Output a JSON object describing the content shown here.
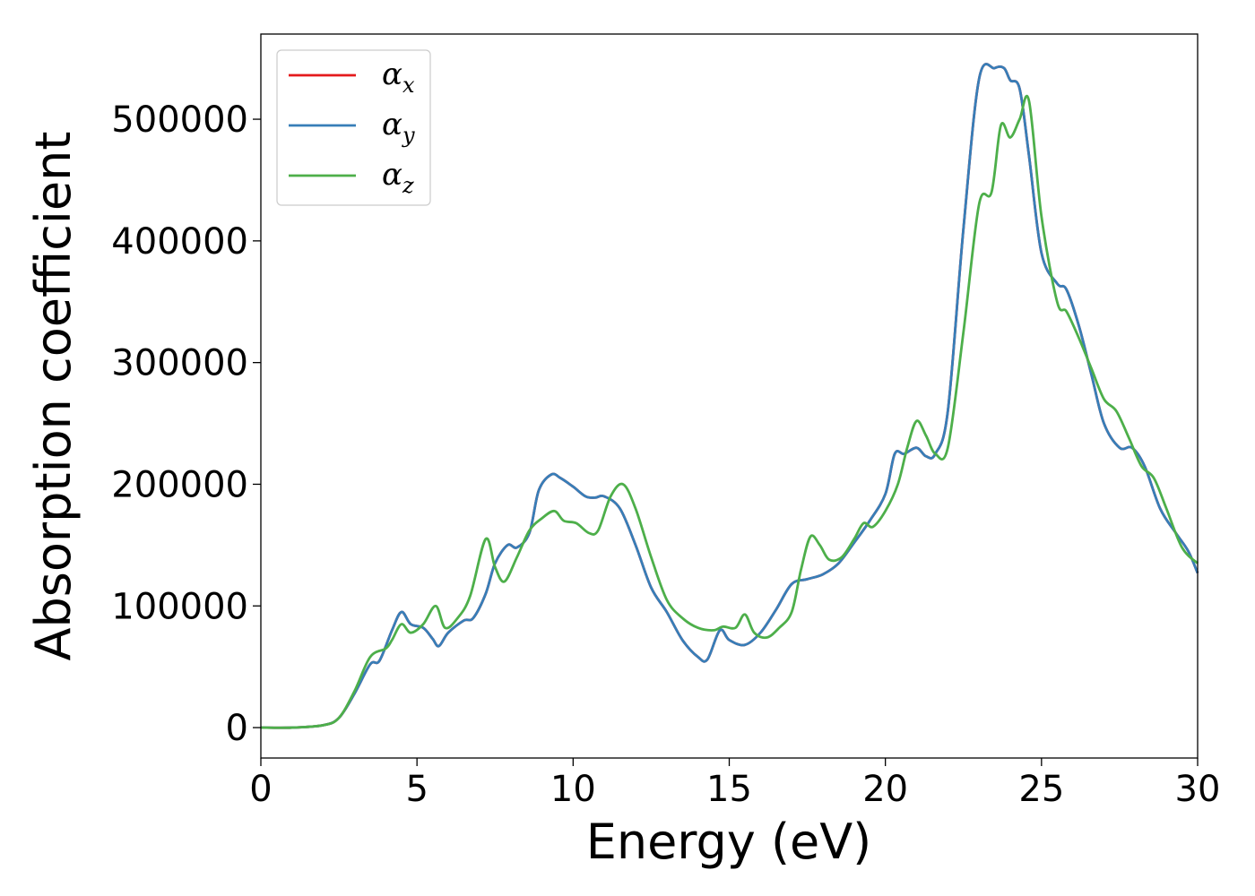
{
  "chart_data": {
    "type": "line",
    "xlabel": "Energy (eV)",
    "ylabel": "Absorption coefficient",
    "xlim": [
      0,
      30
    ],
    "ylim": [
      -25000,
      570000
    ],
    "xticks": [
      0,
      5,
      10,
      15,
      20,
      25,
      30
    ],
    "yticks": [
      0,
      100000,
      200000,
      300000,
      400000,
      500000
    ],
    "grid": false,
    "legend_position": "top-left",
    "series": [
      {
        "name": "α",
        "subscript": "x",
        "color": "#e41a1c",
        "x": [
          0,
          1,
          2,
          2.5,
          3,
          3.5,
          3.8,
          4.2,
          4.5,
          4.8,
          5.2,
          5.5,
          5.7,
          6,
          6.5,
          6.8,
          7.2,
          7.5,
          7.9,
          8.2,
          8.6,
          8.9,
          9.3,
          9.6,
          10,
          10.4,
          10.7,
          11,
          11.5,
          12,
          12.5,
          13,
          13.5,
          14,
          14.3,
          14.7,
          15,
          15.5,
          16,
          16.5,
          17,
          17.5,
          18,
          18.5,
          19,
          19.5,
          20,
          20.3,
          20.6,
          21,
          21.3,
          21.6,
          22,
          22.5,
          23,
          23.5,
          23.8,
          24,
          24.3,
          24.6,
          25,
          25.5,
          25.8,
          26.2,
          26.6,
          27,
          27.5,
          27.9,
          28.3,
          28.8,
          29.3,
          29.7,
          30
        ],
        "y": [
          0,
          0,
          2000,
          8000,
          28000,
          52000,
          55000,
          80000,
          95000,
          85000,
          82000,
          73000,
          67000,
          78000,
          88000,
          90000,
          110000,
          135000,
          150000,
          148000,
          160000,
          195000,
          208000,
          205000,
          198000,
          190000,
          189000,
          190000,
          180000,
          150000,
          115000,
          95000,
          72000,
          58000,
          56000,
          80000,
          72000,
          68000,
          78000,
          97000,
          118000,
          122000,
          126000,
          135000,
          152000,
          170000,
          192000,
          225000,
          225000,
          230000,
          223000,
          225000,
          260000,
          410000,
          533000,
          542000,
          542000,
          532000,
          525000,
          470000,
          390000,
          365000,
          360000,
          330000,
          290000,
          250000,
          230000,
          230000,
          215000,
          180000,
          160000,
          145000,
          127000
        ]
      },
      {
        "name": "α",
        "subscript": "y",
        "color": "#377eb8",
        "x": [
          0,
          1,
          2,
          2.5,
          3,
          3.5,
          3.8,
          4.2,
          4.5,
          4.8,
          5.2,
          5.5,
          5.7,
          6,
          6.5,
          6.8,
          7.2,
          7.5,
          7.9,
          8.2,
          8.6,
          8.9,
          9.3,
          9.6,
          10,
          10.4,
          10.7,
          11,
          11.5,
          12,
          12.5,
          13,
          13.5,
          14,
          14.3,
          14.7,
          15,
          15.5,
          16,
          16.5,
          17,
          17.5,
          18,
          18.5,
          19,
          19.5,
          20,
          20.3,
          20.6,
          21,
          21.3,
          21.6,
          22,
          22.5,
          23,
          23.5,
          23.8,
          24,
          24.3,
          24.6,
          25,
          25.5,
          25.8,
          26.2,
          26.6,
          27,
          27.5,
          27.9,
          28.3,
          28.8,
          29.3,
          29.7,
          30
        ],
        "y": [
          0,
          0,
          2000,
          8000,
          28000,
          52000,
          55000,
          80000,
          95000,
          85000,
          82000,
          73000,
          67000,
          78000,
          88000,
          90000,
          110000,
          135000,
          150000,
          148000,
          160000,
          195000,
          208000,
          205000,
          198000,
          190000,
          189000,
          190000,
          180000,
          150000,
          115000,
          95000,
          72000,
          58000,
          56000,
          80000,
          72000,
          68000,
          78000,
          97000,
          118000,
          122000,
          126000,
          135000,
          152000,
          170000,
          192000,
          225000,
          225000,
          230000,
          223000,
          225000,
          260000,
          410000,
          533000,
          542000,
          542000,
          532000,
          525000,
          470000,
          390000,
          365000,
          360000,
          330000,
          290000,
          250000,
          230000,
          230000,
          215000,
          180000,
          160000,
          145000,
          127000
        ]
      },
      {
        "name": "α",
        "subscript": "z",
        "color": "#4daf4a",
        "x": [
          0,
          1,
          2,
          2.5,
          3,
          3.5,
          4,
          4.2,
          4.5,
          4.8,
          5.2,
          5.6,
          5.9,
          6.3,
          6.7,
          7.2,
          7.5,
          7.8,
          8.2,
          8.6,
          9,
          9.4,
          9.7,
          10.1,
          10.5,
          10.8,
          11.2,
          11.6,
          12,
          12.5,
          13,
          13.5,
          14,
          14.5,
          14.8,
          15.2,
          15.5,
          15.8,
          16.2,
          16.6,
          17,
          17.3,
          17.6,
          17.9,
          18.2,
          18.6,
          19,
          19.3,
          19.6,
          20,
          20.4,
          20.7,
          21,
          21.3,
          21.6,
          22,
          22.5,
          23,
          23.4,
          23.7,
          24,
          24.3,
          24.6,
          25,
          25.5,
          25.8,
          26.2,
          26.6,
          27,
          27.4,
          27.8,
          28.2,
          28.6,
          29,
          29.5,
          30
        ],
        "y": [
          0,
          0,
          2000,
          8000,
          30000,
          58000,
          65000,
          72000,
          85000,
          78000,
          85000,
          100000,
          82000,
          90000,
          108000,
          155000,
          132000,
          120000,
          140000,
          162000,
          172000,
          178000,
          170000,
          168000,
          160000,
          162000,
          190000,
          200000,
          180000,
          140000,
          105000,
          90000,
          82000,
          80000,
          83000,
          82000,
          93000,
          78000,
          74000,
          82000,
          95000,
          130000,
          157000,
          150000,
          138000,
          140000,
          155000,
          168000,
          165000,
          178000,
          200000,
          230000,
          252000,
          240000,
          225000,
          230000,
          325000,
          430000,
          440000,
          495000,
          485000,
          500000,
          515000,
          420000,
          350000,
          342000,
          320000,
          295000,
          270000,
          260000,
          238000,
          215000,
          205000,
          180000,
          148000,
          135000
        ]
      }
    ]
  }
}
